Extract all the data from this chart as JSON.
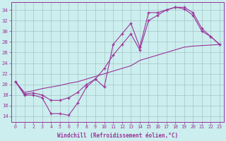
{
  "xlabel": "Windchill (Refroidissement éolien,°C)",
  "bg_color": "#cceeee",
  "line_color": "#993399",
  "xlim": [
    -0.5,
    23.5
  ],
  "ylim": [
    13.0,
    35.5
  ],
  "yticks": [
    14,
    16,
    18,
    20,
    22,
    24,
    26,
    28,
    30,
    32,
    34
  ],
  "xticks": [
    0,
    1,
    2,
    3,
    4,
    5,
    6,
    7,
    8,
    9,
    10,
    11,
    12,
    13,
    14,
    15,
    16,
    17,
    18,
    19,
    20,
    21,
    22,
    23
  ],
  "curve1_x": [
    0,
    1,
    2,
    3,
    4,
    5,
    6,
    7,
    8,
    9,
    10,
    11,
    12,
    13,
    14,
    15,
    16,
    17,
    18,
    19,
    20,
    21,
    22,
    23
  ],
  "curve1_y": [
    20.5,
    18.0,
    18.0,
    17.5,
    14.5,
    14.5,
    14.2,
    16.5,
    19.5,
    21.0,
    19.5,
    27.5,
    29.5,
    31.5,
    27.0,
    33.5,
    33.5,
    34.0,
    34.5,
    34.5,
    33.5,
    30.5,
    29.0,
    27.5
  ],
  "curve2_x": [
    0,
    1,
    2,
    3,
    4,
    5,
    6,
    7,
    8,
    9,
    10,
    11,
    12,
    13,
    14,
    15,
    16,
    17,
    18,
    19,
    20,
    21,
    22,
    23
  ],
  "curve2_y": [
    20.5,
    18.5,
    18.8,
    19.2,
    19.5,
    19.8,
    20.2,
    20.5,
    21.0,
    21.5,
    22.0,
    22.5,
    23.0,
    23.5,
    24.5,
    25.0,
    25.5,
    26.0,
    26.5,
    27.0,
    27.2,
    27.3,
    27.4,
    27.5
  ],
  "curve3_x": [
    0,
    1,
    2,
    3,
    4,
    5,
    6,
    7,
    8,
    9,
    10,
    11,
    12,
    13,
    14,
    15,
    16,
    17,
    18,
    19,
    20,
    21,
    22,
    23
  ],
  "curve3_y": [
    20.5,
    18.2,
    18.4,
    18.0,
    17.0,
    17.0,
    17.5,
    18.5,
    20.0,
    21.0,
    23.0,
    25.5,
    27.5,
    29.5,
    26.5,
    32.0,
    33.0,
    34.0,
    34.5,
    34.2,
    33.0,
    30.0,
    29.0,
    27.5
  ]
}
